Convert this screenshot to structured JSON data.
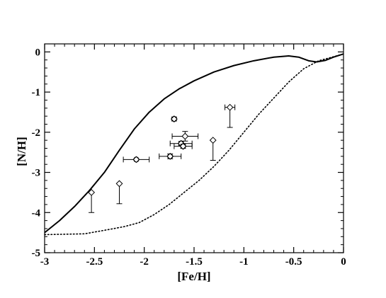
{
  "chart_data": {
    "type": "scatter",
    "title": "",
    "xlabel": "[Fe/H]",
    "ylabel": "[N/H]",
    "xlim": [
      -3,
      0
    ],
    "ylim": [
      -5,
      0.2
    ],
    "grid": false,
    "x_ticks": [
      -3,
      -2.5,
      -2,
      -1.5,
      -1,
      -0.5,
      0
    ],
    "x_tick_labels": [
      "-3",
      "-2.5",
      "-2",
      "-1.5",
      "-1",
      "-0.5",
      "0"
    ],
    "y_ticks": [
      0,
      -1,
      -2,
      -3,
      -4,
      -5
    ],
    "y_tick_labels": [
      "0",
      "-1",
      "-2",
      "-3",
      "-4",
      "-5"
    ],
    "curves": [
      {
        "style": "solid",
        "points": [
          [
            -3.0,
            -4.5
          ],
          [
            -2.85,
            -4.2
          ],
          [
            -2.7,
            -3.85
          ],
          [
            -2.55,
            -3.45
          ],
          [
            -2.4,
            -3.0
          ],
          [
            -2.25,
            -2.45
          ],
          [
            -2.1,
            -1.92
          ],
          [
            -1.95,
            -1.5
          ],
          [
            -1.8,
            -1.17
          ],
          [
            -1.65,
            -0.92
          ],
          [
            -1.5,
            -0.72
          ],
          [
            -1.3,
            -0.5
          ],
          [
            -1.1,
            -0.34
          ],
          [
            -0.9,
            -0.22
          ],
          [
            -0.7,
            -0.13
          ],
          [
            -0.55,
            -0.1
          ],
          [
            -0.45,
            -0.13
          ],
          [
            -0.35,
            -0.22
          ],
          [
            -0.27,
            -0.25
          ],
          [
            -0.18,
            -0.21
          ],
          [
            -0.1,
            -0.13
          ],
          [
            0.0,
            -0.05
          ]
        ]
      },
      {
        "style": "dotted",
        "points": [
          [
            -3.0,
            -4.55
          ],
          [
            -2.6,
            -4.53
          ],
          [
            -2.35,
            -4.42
          ],
          [
            -2.2,
            -4.35
          ],
          [
            -2.05,
            -4.25
          ],
          [
            -1.9,
            -4.05
          ],
          [
            -1.75,
            -3.8
          ],
          [
            -1.6,
            -3.5
          ],
          [
            -1.45,
            -3.2
          ],
          [
            -1.3,
            -2.85
          ],
          [
            -1.15,
            -2.45
          ],
          [
            -1.0,
            -2.0
          ],
          [
            -0.85,
            -1.55
          ],
          [
            -0.7,
            -1.15
          ],
          [
            -0.55,
            -0.75
          ],
          [
            -0.4,
            -0.42
          ],
          [
            -0.25,
            -0.22
          ],
          [
            -0.1,
            -0.12
          ],
          [
            0.0,
            -0.05
          ]
        ]
      }
    ],
    "points": [
      {
        "marker": "diamond",
        "x": -2.53,
        "y": -3.5,
        "yerr_lower": 0.5,
        "yerr_upper": 0,
        "xerr": 0
      },
      {
        "marker": "diamond",
        "x": -2.25,
        "y": -3.28,
        "yerr_lower": 0.5,
        "yerr_upper": 0,
        "xerr": 0
      },
      {
        "marker": "circle-diamond",
        "x": -2.08,
        "y": -2.68,
        "yerr_lower": 0,
        "yerr_upper": 0,
        "xerr": 0.13
      },
      {
        "marker": "circle-diamond",
        "x": -1.74,
        "y": -2.6,
        "yerr_lower": 0.06,
        "yerr_upper": 0.06,
        "xerr": 0.11
      },
      {
        "marker": "circle-diamond",
        "x": -1.7,
        "y": -1.67,
        "yerr_lower": 0.05,
        "yerr_upper": 0.05,
        "xerr": 0
      },
      {
        "marker": "circle-diamond",
        "x": -1.63,
        "y": -2.28,
        "yerr_lower": 0.05,
        "yerr_upper": 0.05,
        "xerr": 0.11
      },
      {
        "marker": "circle-diamond",
        "x": -1.61,
        "y": -2.35,
        "yerr_lower": 0.05,
        "yerr_upper": 0.05,
        "xerr": 0.09
      },
      {
        "marker": "diamond",
        "x": -1.59,
        "y": -2.1,
        "yerr_lower": 0.12,
        "yerr_upper": 0.12,
        "xerr": 0.13
      },
      {
        "marker": "diamond",
        "x": -1.31,
        "y": -2.2,
        "yerr_lower": 0.5,
        "yerr_upper": 0,
        "xerr": 0
      },
      {
        "marker": "diamond",
        "x": -1.14,
        "y": -1.38,
        "yerr_lower": 0.5,
        "yerr_upper": 0,
        "xerr": 0.05
      }
    ]
  }
}
